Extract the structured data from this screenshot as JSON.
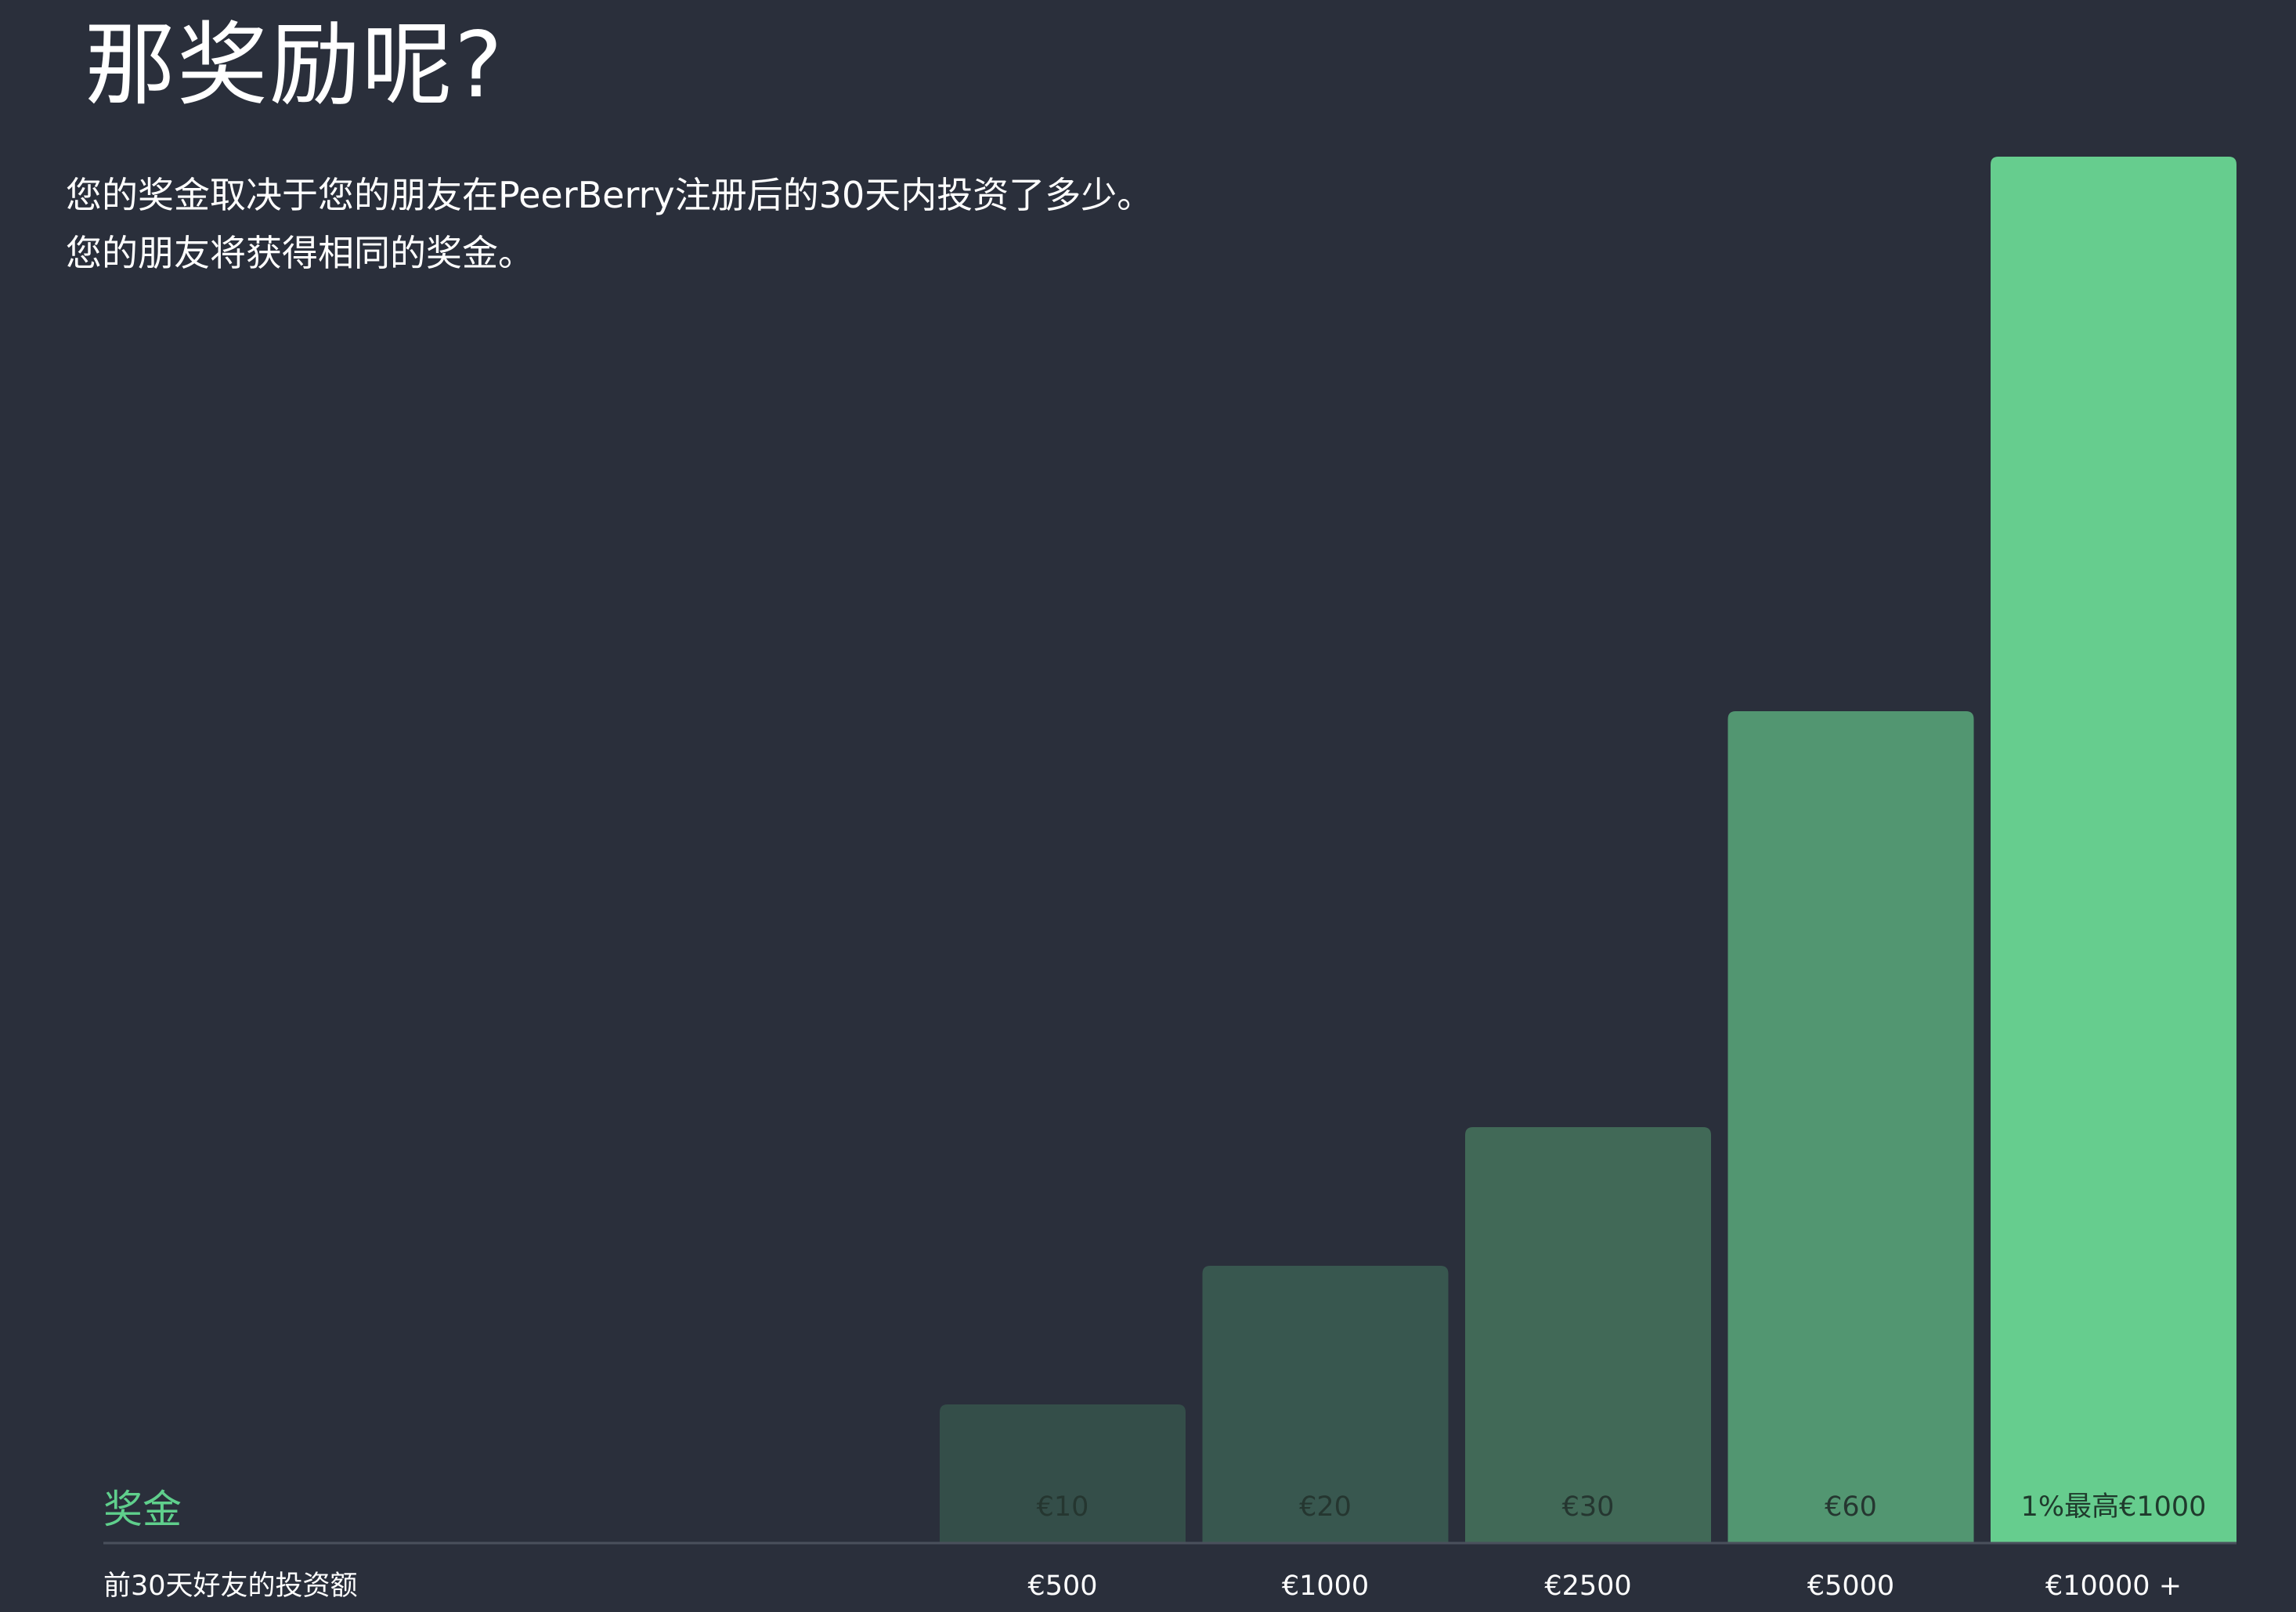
{
  "header": {
    "title": "那奖励呢?",
    "description": [
      "您的奖金取决于您的朋友在PeerBerry注册后的30天内投资了多少。",
      "您的朋友将获得相同的奖金。"
    ]
  },
  "chart_data": {
    "type": "bar",
    "row_labels": {
      "bonus": "奖金",
      "investment": "前30天好友的投资额"
    },
    "categories": [
      "€500",
      "€1000",
      "€2500",
      "€5000",
      "€10000 +"
    ],
    "values": [
      10,
      20,
      30,
      60,
      100
    ],
    "value_labels": [
      "€10",
      "€20",
      "€30",
      "€60",
      "1%最高€1000"
    ],
    "ylim": [
      0,
      100
    ],
    "grid": false,
    "legend": "none",
    "colors": {
      "bars": [
        "#344e49",
        "#38574f",
        "#416957",
        "#529671",
        "#66cd8e"
      ],
      "value_label": [
        "#253630",
        "#253630",
        "#253630",
        "#253630",
        "#1f3a2c"
      ],
      "bonus_label": "#5fcf8c",
      "axis_line": "#4a505c",
      "text": "#ffffff",
      "background": "#2a2f3b"
    }
  }
}
